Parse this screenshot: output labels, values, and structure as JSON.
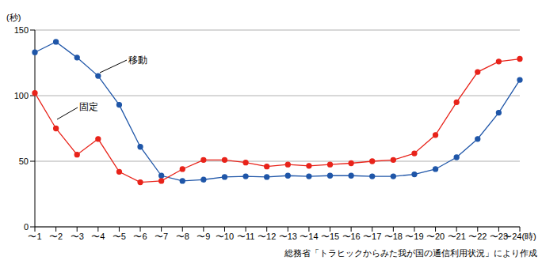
{
  "chart_data": {
    "type": "line",
    "categories": [
      "〜1",
      "〜2",
      "〜3",
      "〜4",
      "〜5",
      "〜6",
      "〜7",
      "〜8",
      "〜9",
      "〜10",
      "〜11",
      "〜12",
      "〜13",
      "〜14",
      "〜15",
      "〜16",
      "〜17",
      "〜18",
      "〜19",
      "〜20",
      "〜21",
      "〜22",
      "〜23",
      "〜24"
    ],
    "x_label": "(時)",
    "y_label": "(秒)",
    "series": [
      {
        "name": "移動",
        "color": "#1f56a8",
        "marker": "circle",
        "values": [
          133,
          141,
          129,
          115,
          93,
          61,
          39,
          35,
          36,
          38,
          38.5,
          38,
          39,
          38.5,
          39,
          39,
          38.5,
          38.5,
          40,
          44,
          53,
          67,
          87,
          112
        ]
      },
      {
        "name": "固定",
        "color": "#e8231a",
        "marker": "circle",
        "values": [
          102,
          75,
          55,
          67,
          42,
          34,
          35,
          44,
          51,
          51,
          49,
          46,
          47.5,
          46.5,
          47.5,
          48.5,
          50,
          51,
          56,
          70,
          95,
          118,
          126,
          128
        ]
      }
    ],
    "ylim": [
      0,
      150
    ],
    "yticks": [
      0,
      50,
      100,
      150
    ],
    "grid": true,
    "source": "総務省「トラヒックからみた我が国の通信利用状況」により作成"
  }
}
